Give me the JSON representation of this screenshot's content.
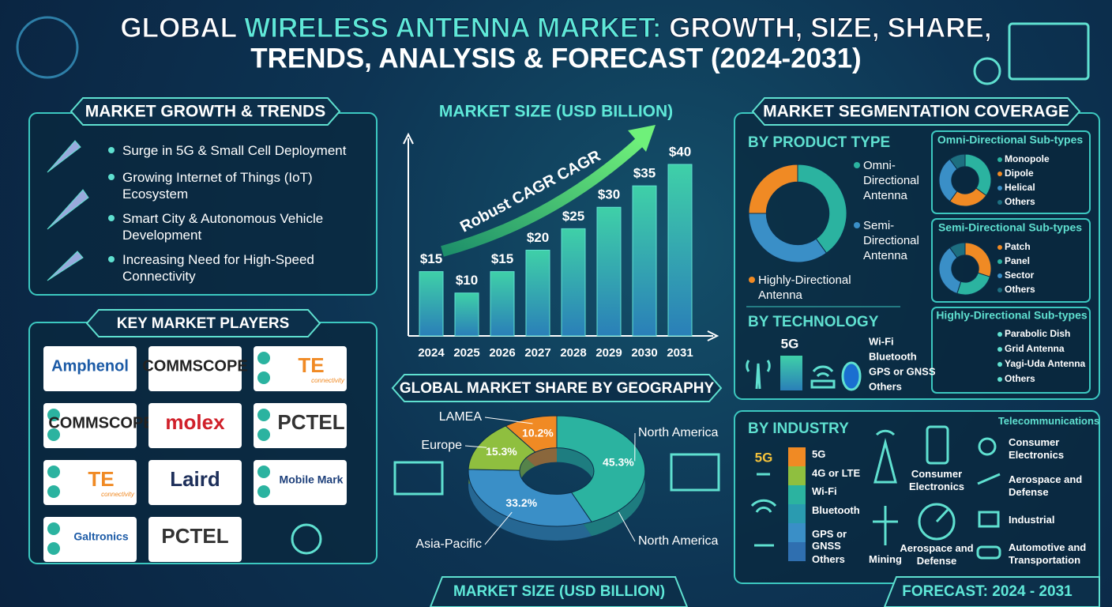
{
  "header": {
    "title": {
      "lead": "GLOBAL ",
      "highlight": "WIRELESS ANTENNA MARKET:",
      "rest": " GROWTH, SIZE, SHARE,",
      "line2": "TRENDS, ANALYSIS & FORECAST (2024-2031)"
    }
  },
  "growth": {
    "title": "MARKET GROWTH & TRENDS",
    "items": [
      "Surge in 5G & Small Cell Deployment",
      "Growing Internet of Things (IoT) Ecosystem",
      "Smart City & Autonomous Vehicle Development",
      "Increasing Need for High-Speed Connectivity"
    ]
  },
  "players": {
    "title": "KEY MARKET PLAYERS",
    "logos": [
      {
        "name": "Amphenol",
        "color": "#1b5aa6"
      },
      {
        "name": "COMMSCOPE",
        "color": "#222222"
      },
      {
        "name": "TE",
        "sub": "connectivity",
        "color": "#f08a24"
      },
      {
        "name": "COMMSCOPE",
        "color": "#222222"
      },
      {
        "name": "molex",
        "color": "#d0202a"
      },
      {
        "name": "PCTEL",
        "color": "#333333"
      },
      {
        "name": "TE",
        "sub": "connectivity",
        "color": "#f08a24"
      },
      {
        "name": "Laird",
        "color": "#1d2f5a"
      },
      {
        "name": "Mobile Mark",
        "color": "#1d3f7a"
      },
      {
        "name": "Galtronics",
        "color": "#1b5aa6"
      },
      {
        "name": "PCTEL",
        "color": "#333333"
      }
    ]
  },
  "chart_data": [
    {
      "type": "bar",
      "title": "MARKET SIZE (USD BILLION)",
      "annotation": "Robust CAGR CAGR",
      "categories": [
        "2024",
        "2025",
        "2026",
        "2027",
        "2028",
        "2029",
        "2030",
        "2031"
      ],
      "values": [
        15,
        10,
        15,
        20,
        25,
        30,
        35,
        40
      ],
      "value_labels": [
        "$15",
        "$10",
        "$15",
        "$20",
        "$25",
        "$30",
        "$35",
        "$40"
      ],
      "color": "#2fb3a8"
    },
    {
      "type": "pie",
      "title": "GLOBAL MARKET SHARE BY GEOGRAPHY",
      "categories": [
        "North America",
        "Asia-Pacific",
        "Europe",
        "LAMEA"
      ],
      "values": [
        45.3,
        33.2,
        15.3,
        10.2
      ],
      "value_labels": [
        "45.3%",
        "33.2%",
        "15.3%",
        "10.2%"
      ],
      "colors": [
        "#2bb3a0",
        "#3a8fc7",
        "#8fbf3f",
        "#f08a24"
      ],
      "annotations": [
        "North America"
      ]
    },
    {
      "type": "pie",
      "title": "BY PRODUCT TYPE",
      "categories": [
        "Omni-Directional Antenna",
        "Semi-Directional Antenna",
        "Highly-Directional Antenna"
      ],
      "values": [
        40,
        35,
        25
      ],
      "colors": [
        "#2bb3a0",
        "#3a8fc7",
        "#f08a24"
      ]
    },
    {
      "type": "pie",
      "title": "Omni-Directional Sub-types",
      "categories": [
        "Monopole",
        "Dipole",
        "Helical",
        "Others"
      ],
      "values": [
        35,
        25,
        30,
        10
      ],
      "colors": [
        "#2bb3a0",
        "#f08a24",
        "#3a8fc7",
        "#1d6f80"
      ]
    },
    {
      "type": "pie",
      "title": "Semi-Directional Sub-types",
      "categories": [
        "Patch",
        "Panel",
        "Sector",
        "Others"
      ],
      "values": [
        30,
        25,
        35,
        10
      ],
      "colors": [
        "#f08a24",
        "#2bb3a0",
        "#3a8fc7",
        "#1d6f80"
      ]
    }
  ],
  "segmentation": {
    "title": "MARKET SEGMENTATION COVERAGE",
    "highly": {
      "title": "Highly-Directional Sub-types",
      "items": [
        "Parabolic Dish",
        "Grid Antenna",
        "Yagi-Uda Antenna",
        "Others"
      ]
    },
    "technology": {
      "title": "BY TECHNOLOGY",
      "badge": "5G",
      "items": [
        "Wi-Fi",
        "Bluetooth",
        "GPS or GNSS",
        "Others"
      ]
    }
  },
  "industry": {
    "title": "BY INDUSTRY",
    "badge": "5G",
    "legend": [
      {
        "name": "5G",
        "color": "#f08a24"
      },
      {
        "name": "4G or LTE",
        "color": "#8fbf3f"
      },
      {
        "name": "Wi-Fi",
        "color": "#2bb3a0"
      },
      {
        "name": "Bluetooth",
        "color": "#2a9bb0"
      },
      {
        "name": "GPS or GNSS",
        "color": "#3a8fc7"
      },
      {
        "name": "Others",
        "color": "#2f6fb0"
      }
    ],
    "labels": [
      "Telecommunications",
      "Consumer Electronics",
      "Mining",
      "Aerospace and Defense",
      "Consumer Electronics",
      "Aerospace and Defense",
      "Industrial",
      "Automotive and Transportation"
    ]
  },
  "footer": {
    "left": "MARKET SIZE (USD BILLION)",
    "right": "FORECAST: 2024 - 2031"
  }
}
